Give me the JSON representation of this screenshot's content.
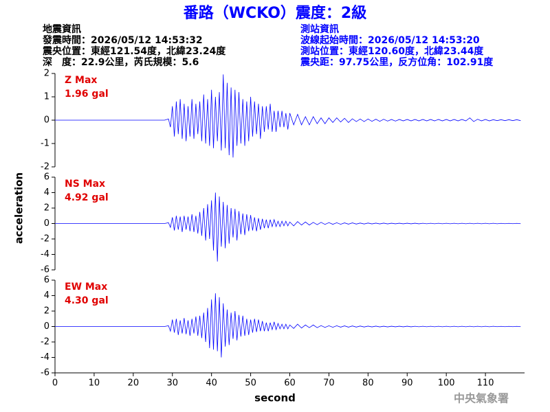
{
  "chart_data": {
    "type": "line",
    "title": "番路（WCKO）震度：2級",
    "info_left": [
      "地震資訊",
      "發震時間：2026/05/12 14:53:32",
      "震央位置：東經121.54度，北緯23.24度",
      "深　度：22.9公里，芮氏規模：5.6"
    ],
    "info_right": [
      "測站資訊",
      "波線起始時間：2026/05/12 14:53:20",
      "測站位置：東經120.60度，北緯23.44度",
      "震央距：97.75公里，反方位角：102.91度"
    ],
    "xlabel": "second",
    "ylabel": "acceleration",
    "source": "中央氣象署",
    "xlim": [
      0,
      120
    ],
    "xticks": [
      0,
      10,
      20,
      30,
      40,
      50,
      60,
      70,
      80,
      90,
      100,
      110
    ],
    "x": [
      0,
      5,
      10,
      15,
      20,
      25,
      28,
      29,
      29.5,
      30,
      30.5,
      31,
      31.5,
      32,
      32.5,
      33,
      33.5,
      34,
      34.5,
      35,
      35.5,
      36,
      36.5,
      37,
      37.5,
      38,
      38.5,
      39,
      39.5,
      40,
      40.5,
      41,
      41.5,
      42,
      42.5,
      43,
      43.5,
      44,
      44.5,
      45,
      45.5,
      46,
      46.5,
      47,
      47.5,
      48,
      48.5,
      49,
      49.5,
      50,
      50.5,
      51,
      51.5,
      52,
      52.5,
      53,
      53.5,
      54,
      54.5,
      55,
      55.5,
      56,
      56.5,
      57,
      57.5,
      58,
      58.5,
      59,
      59.5,
      60,
      61,
      62,
      63,
      64,
      65,
      66,
      67,
      68,
      69,
      70,
      71,
      72,
      73,
      74,
      75,
      76,
      77,
      78,
      79,
      80,
      81,
      82,
      83,
      84,
      85,
      86,
      87,
      88,
      89,
      90,
      91,
      92,
      93,
      94,
      95,
      96,
      97,
      98,
      99,
      100,
      101,
      102,
      103,
      104,
      105,
      106,
      107,
      108,
      109,
      110,
      111,
      112,
      113,
      114,
      115,
      116,
      117,
      118,
      119
    ],
    "series": [
      {
        "label": "Z Max",
        "max": "1.96 gal",
        "color": "#0000ff",
        "ylim": [
          -2,
          2
        ],
        "yticks": [
          -2,
          -1,
          0,
          1,
          2
        ],
        "values": [
          0,
          0,
          0,
          0,
          0,
          0,
          0,
          0.05,
          -0.3,
          0.6,
          -0.7,
          0.8,
          -0.6,
          0.9,
          -0.8,
          0.7,
          -0.9,
          0.6,
          -0.7,
          0.9,
          -0.8,
          0.7,
          -0.6,
          0.8,
          -0.9,
          1.1,
          -1.0,
          0.9,
          -1.1,
          1.3,
          -1.2,
          1.0,
          -0.9,
          1.2,
          -1.3,
          1.96,
          -1.2,
          1.6,
          -1.5,
          1.4,
          -1.6,
          1.3,
          -1.1,
          1.2,
          -1.0,
          0.9,
          -1.1,
          0.8,
          -0.9,
          1.0,
          -0.7,
          0.8,
          -0.6,
          0.7,
          -0.8,
          0.6,
          -0.5,
          0.6,
          -0.4,
          0.7,
          -0.5,
          0.4,
          -0.5,
          0.4,
          -0.3,
          0.4,
          -0.3,
          0.3,
          -0.4,
          0.3,
          -0.2,
          0.25,
          -0.2,
          0.15,
          -0.2,
          0.15,
          -0.15,
          0.1,
          -0.15,
          0.1,
          -0.1,
          0.1,
          -0.08,
          0.08,
          -0.1,
          0.06,
          -0.06,
          0.05,
          -0.06,
          0.05,
          -0.05,
          0.04,
          -0.05,
          0.04,
          -0.04,
          0.03,
          -0.04,
          0.03,
          -0.03,
          0.03,
          -0.03,
          0.03,
          -0.03,
          0.03,
          -0.03,
          0.03,
          -0.03,
          0.03,
          -0.03,
          0.03,
          -0.03,
          0.03,
          -0.03,
          0.03,
          -0.03,
          0.1,
          -0.06,
          0.04,
          -0.03,
          0.03,
          -0.03,
          0.02,
          -0.02,
          0.02,
          -0.02,
          0.02,
          -0.02,
          0.02,
          -0.02
        ]
      },
      {
        "label": "NS Max",
        "max": "4.92 gal",
        "color": "#0000ff",
        "ylim": [
          -6,
          6
        ],
        "yticks": [
          -6,
          -4,
          -2,
          0,
          2,
          4,
          6
        ],
        "values": [
          0,
          0,
          0,
          0,
          0,
          0,
          0,
          0.1,
          -0.5,
          0.8,
          -0.9,
          1.0,
          -0.8,
          0.9,
          -1.1,
          1.0,
          -0.8,
          0.9,
          -1.0,
          1.2,
          -1.1,
          1.0,
          -1.3,
          1.5,
          -1.6,
          2.0,
          -2.2,
          2.5,
          -2.0,
          3.0,
          -3.5,
          4.0,
          -4.92,
          3.5,
          -3.0,
          2.8,
          -3.2,
          2.4,
          -2.6,
          2.0,
          -1.8,
          1.9,
          -2.2,
          1.6,
          -1.4,
          1.3,
          -1.5,
          1.2,
          -1.0,
          1.1,
          -0.9,
          0.8,
          -1.0,
          0.7,
          -0.8,
          0.6,
          -0.6,
          0.5,
          -0.6,
          0.5,
          -0.4,
          0.5,
          -0.4,
          0.3,
          -0.4,
          0.3,
          -0.3,
          0.3,
          -0.3,
          0.2,
          -0.3,
          0.25,
          -0.2,
          0.2,
          -0.2,
          0.15,
          -0.15,
          0.15,
          -0.12,
          0.12,
          -0.1,
          0.1,
          -0.1,
          0.08,
          -0.08,
          0.08,
          -0.07,
          0.06,
          -0.06,
          0.06,
          -0.05,
          0.05,
          -0.05,
          0.05,
          -0.05,
          0.04,
          -0.04,
          0.04,
          -0.04,
          0.04,
          -0.04,
          0.04,
          -0.04,
          0.03,
          -0.03,
          0.03,
          -0.03,
          0.03,
          -0.03,
          0.03,
          -0.03,
          0.03,
          -0.03,
          0.03,
          -0.03,
          0.03,
          -0.03,
          0.03,
          -0.03,
          0.03,
          -0.03,
          0.03,
          -0.03,
          0.02,
          -0.02,
          0.02,
          -0.02,
          0.02,
          -0.02
        ]
      },
      {
        "label": "EW Max",
        "max": "4.30 gal",
        "color": "#0000ff",
        "ylim": [
          -6,
          6
        ],
        "yticks": [
          -6,
          -4,
          -2,
          0,
          2,
          4,
          6
        ],
        "values": [
          0,
          0,
          0,
          0,
          0,
          0,
          0,
          0.1,
          -0.6,
          0.9,
          -0.8,
          1.0,
          -1.1,
          0.8,
          -0.9,
          1.1,
          -1.0,
          0.8,
          -1.2,
          1.0,
          -0.9,
          1.3,
          -1.2,
          1.4,
          -1.5,
          1.8,
          -2.0,
          2.4,
          -2.8,
          3.5,
          -3.0,
          4.3,
          -3.2,
          3.8,
          -4.0,
          3.0,
          -2.6,
          2.2,
          -2.4,
          1.8,
          -1.6,
          2.0,
          -1.8,
          1.5,
          -1.3,
          1.4,
          -1.2,
          1.0,
          -1.1,
          0.9,
          -0.8,
          1.0,
          -0.7,
          0.9,
          -0.6,
          0.7,
          -0.6,
          0.5,
          -0.6,
          0.5,
          -0.4,
          0.6,
          -0.4,
          0.4,
          -0.3,
          0.3,
          -0.3,
          0.3,
          -0.3,
          0.2,
          -0.25,
          0.3,
          -0.2,
          0.2,
          -0.15,
          0.2,
          -0.15,
          0.12,
          -0.12,
          0.1,
          -0.1,
          0.1,
          -0.08,
          0.08,
          -0.08,
          0.07,
          -0.07,
          0.06,
          -0.06,
          0.05,
          -0.05,
          0.05,
          -0.05,
          0.04,
          -0.05,
          0.04,
          -0.04,
          0.04,
          -0.04,
          0.04,
          -0.04,
          0.03,
          -0.03,
          0.03,
          -0.03,
          0.03,
          -0.03,
          0.03,
          -0.03,
          0.03,
          -0.03,
          0.03,
          -0.03,
          0.03,
          -0.03,
          0.03,
          -0.03,
          0.03,
          -0.03,
          0.03,
          -0.03,
          0.03,
          -0.02,
          0.02,
          -0.02,
          0.02,
          -0.02,
          0.02,
          -0.02
        ]
      }
    ]
  }
}
